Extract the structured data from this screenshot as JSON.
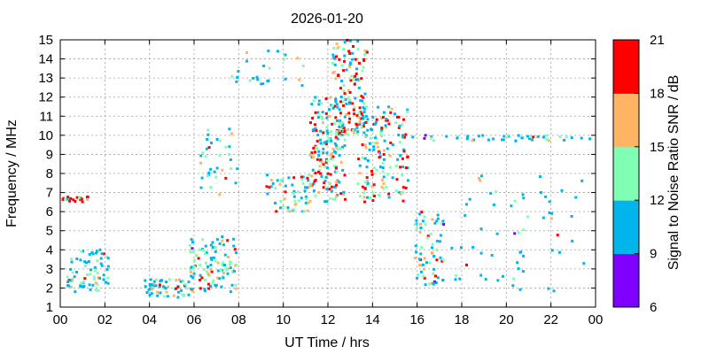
{
  "chart_data": {
    "type": "heatmap",
    "title": "2026-01-20",
    "xlabel": "UT Time / hrs",
    "ylabel": "Frequency / MHz",
    "xlim": [
      0,
      24
    ],
    "ylim": [
      1,
      15
    ],
    "x_ticks": [
      "00",
      "02",
      "04",
      "06",
      "08",
      "10",
      "12",
      "14",
      "16",
      "18",
      "20",
      "22",
      "00"
    ],
    "y_ticks": [
      "1",
      "2",
      "3",
      "4",
      "5",
      "6",
      "7",
      "8",
      "9",
      "10",
      "11",
      "12",
      "13",
      "14",
      "15"
    ],
    "grid": true,
    "colorbar": {
      "label": "Signal to Noise Ratio SNR / dB",
      "ticks": [
        "6",
        "9",
        "12",
        "15",
        "18",
        "21"
      ],
      "levels": [
        {
          "range": [
            6,
            9
          ],
          "color": "#8000ff"
        },
        {
          "range": [
            9,
            12
          ],
          "color": "#00b4ec"
        },
        {
          "range": [
            12,
            15
          ],
          "color": "#80ffb4"
        },
        {
          "range": [
            15,
            18
          ],
          "color": "#ffb464"
        },
        {
          "range": [
            18,
            21
          ],
          "color": "#ff0000"
        }
      ]
    },
    "regions": [
      {
        "x": [
          0.0,
          1.3
        ],
        "y": [
          6.5,
          6.8
        ],
        "n": 20,
        "snr": "mid-high"
      },
      {
        "x": [
          0.2,
          2.2
        ],
        "y": [
          1.8,
          4.0
        ],
        "n": 70,
        "snr": "low-mid"
      },
      {
        "x": [
          3.8,
          5.8
        ],
        "y": [
          1.5,
          2.5
        ],
        "n": 55,
        "snr": "low-mid"
      },
      {
        "x": [
          5.8,
          7.9
        ],
        "y": [
          1.8,
          4.7
        ],
        "n": 110,
        "snr": "mixed"
      },
      {
        "x": [
          6.2,
          8.0
        ],
        "y": [
          6.8,
          10.5
        ],
        "n": 35,
        "snr": "mixed"
      },
      {
        "x": [
          7.6,
          11.0
        ],
        "y": [
          12.6,
          14.5
        ],
        "n": 25,
        "snr": "low-mid"
      },
      {
        "x": [
          9.2,
          11.4
        ],
        "y": [
          6.0,
          8.0
        ],
        "n": 60,
        "snr": "mixed"
      },
      {
        "x": [
          11.2,
          12.8
        ],
        "y": [
          6.5,
          12.0
        ],
        "n": 170,
        "snr": "high"
      },
      {
        "x": [
          12.2,
          13.8
        ],
        "y": [
          10.0,
          15.0
        ],
        "n": 140,
        "snr": "high"
      },
      {
        "x": [
          13.3,
          15.6
        ],
        "y": [
          6.5,
          11.5
        ],
        "n": 150,
        "snr": "high"
      },
      {
        "x": [
          15.9,
          17.2
        ],
        "y": [
          2.0,
          6.0
        ],
        "n": 70,
        "snr": "mixed"
      },
      {
        "x": [
          15.0,
          24.0
        ],
        "y": [
          9.7,
          10.0
        ],
        "n": 45,
        "snr": "low-mid"
      },
      {
        "x": [
          17.5,
          23.5
        ],
        "y": [
          1.8,
          8.0
        ],
        "n": 60,
        "snr": "low"
      }
    ]
  }
}
